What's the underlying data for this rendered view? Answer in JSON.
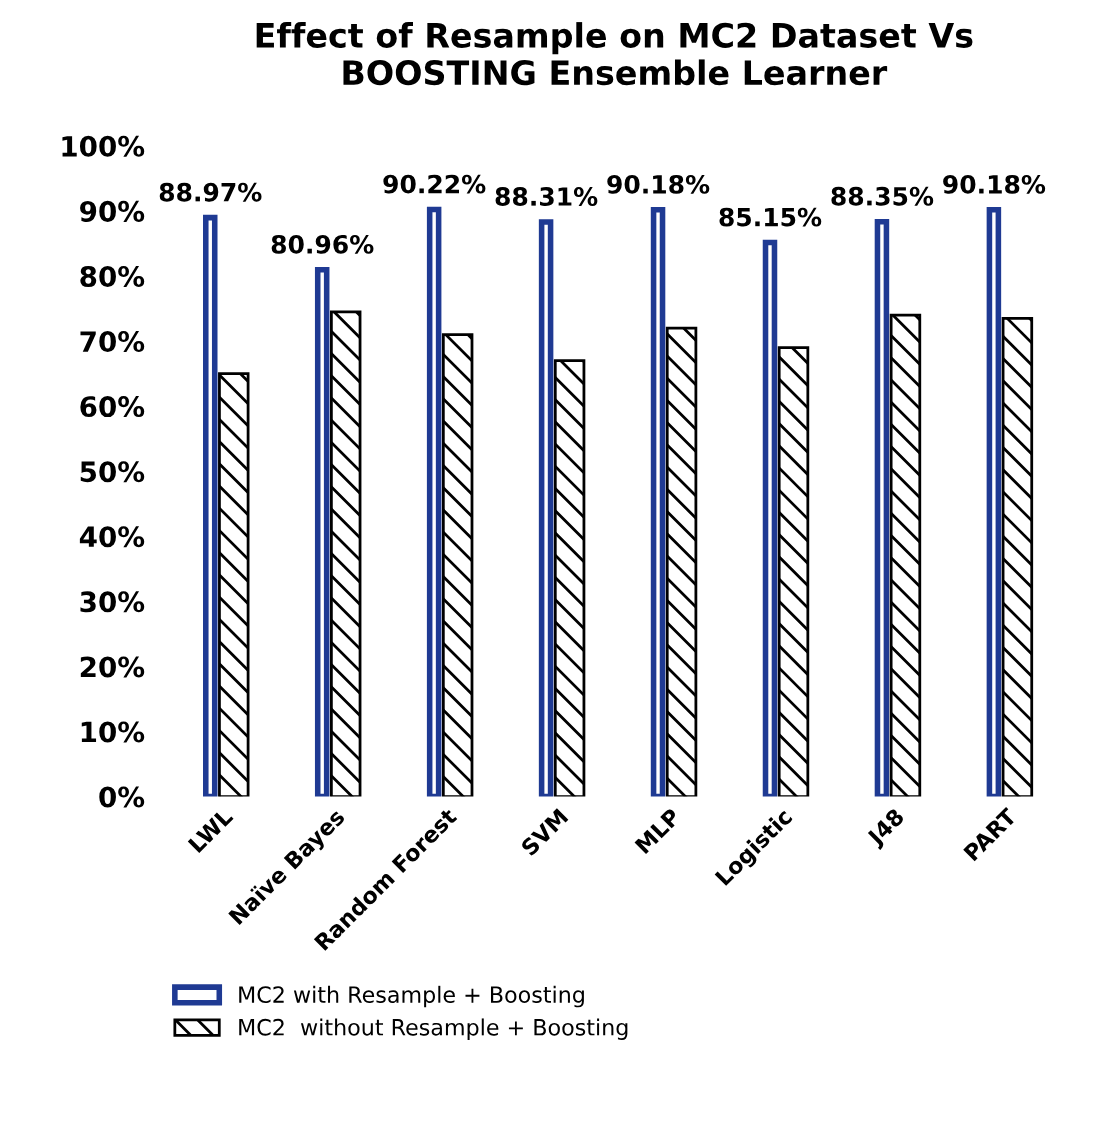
{
  "chart_data": {
    "type": "bar",
    "title": "Effect of Resample on MC2 Dataset Vs\nBOOSTING Ensemble Learner",
    "categories": [
      "LWL",
      "Naïve Bayes",
      "Random Forest",
      "SVM",
      "MLP",
      "Logistic",
      "J48",
      "PART"
    ],
    "series": [
      {
        "name": "MC2 with Resample + Boosting",
        "color": "#1f3a93",
        "values": [
          88.97,
          80.96,
          90.22,
          88.31,
          90.18,
          85.15,
          88.35,
          90.18
        ],
        "value_labels": [
          "88.97%",
          "80.96%",
          "90.22%",
          "88.31%",
          "90.18%",
          "85.15%",
          "88.35%",
          "90.18%"
        ]
      },
      {
        "name": "MC2  without Resample + Boosting",
        "color": "#000000",
        "values": [
          65,
          74.5,
          71,
          67,
          72,
          69,
          74,
          73.5
        ]
      }
    ],
    "ylim": [
      0,
      100
    ],
    "yticks": [
      {
        "value": 0,
        "label": "0%"
      },
      {
        "value": 10,
        "label": "10%"
      },
      {
        "value": 20,
        "label": "20%"
      },
      {
        "value": 30,
        "label": "30%"
      },
      {
        "value": 40,
        "label": "40%"
      },
      {
        "value": 50,
        "label": "50%"
      },
      {
        "value": 60,
        "label": "60%"
      },
      {
        "value": 70,
        "label": "70%"
      },
      {
        "value": 80,
        "label": "80%"
      },
      {
        "value": 90,
        "label": "90%"
      },
      {
        "value": 100,
        "label": "100%"
      }
    ],
    "grid": false,
    "legend": "bottom"
  }
}
